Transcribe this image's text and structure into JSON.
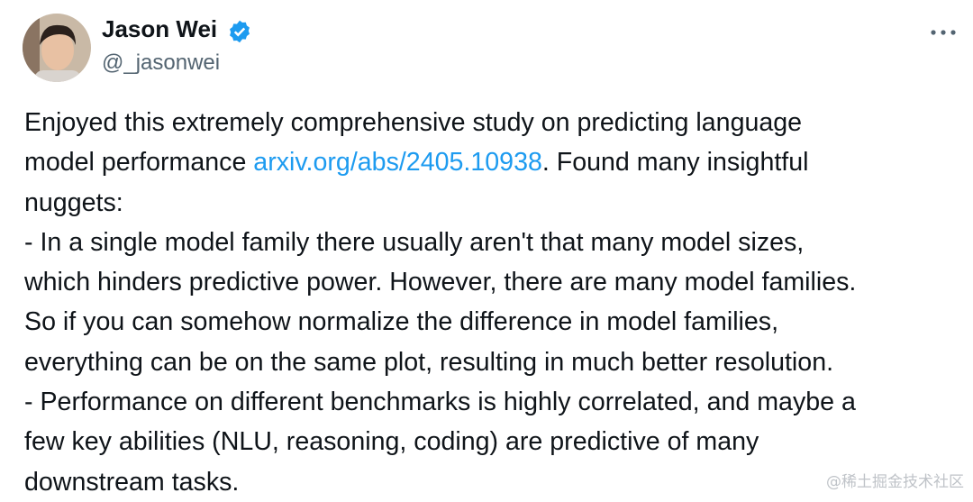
{
  "tweet": {
    "author": {
      "name": "Jason Wei",
      "handle": "@_jasonwei"
    },
    "lines": [
      [
        "Enjoyed this extremely comprehensive study on predicting language"
      ],
      [
        "model performance ",
        "arxiv.org/abs/2405.10938",
        ". Found many insightful"
      ],
      [
        "nuggets:"
      ],
      [
        "- In a single model family there usually aren't that many model sizes,"
      ],
      [
        "which hinders predictive power. However, there are many model families."
      ],
      [
        "So if you can somehow normalize the difference in model families,"
      ],
      [
        "everything can be on the same plot, resulting in much better resolution."
      ],
      [
        "- Performance on different benchmarks is highly correlated, and maybe a"
      ],
      [
        "few key abilities (NLU, reasoning, coding) are predictive of many"
      ],
      [
        "downstream tasks."
      ]
    ],
    "watermark": "@稀土掘金技术社区"
  }
}
